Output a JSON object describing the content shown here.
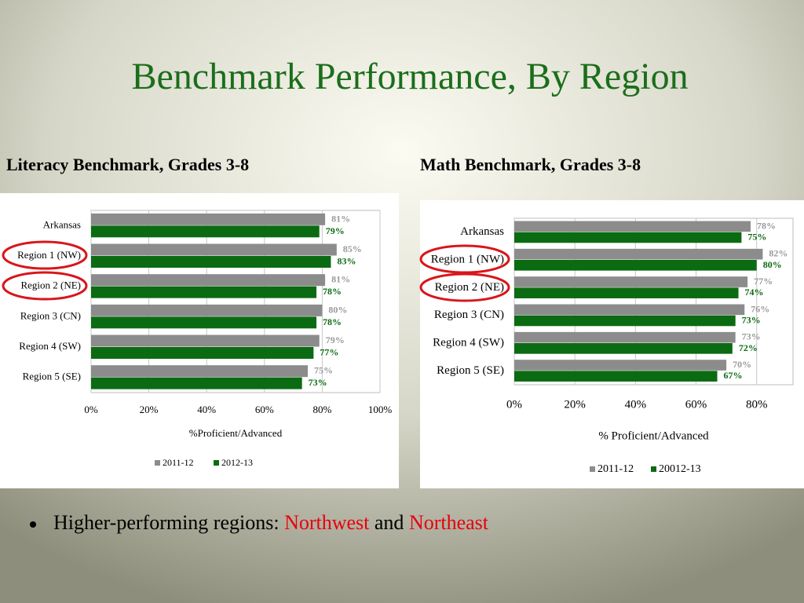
{
  "title": "Benchmark Performance, By Region",
  "chart_data": [
    {
      "type": "bar",
      "orientation": "horizontal",
      "title": "Literacy Benchmark, Grades 3-8",
      "categories": [
        "Arkansas",
        "Region 1 (NW)",
        "Region 2 (NE)",
        "Region 3 (CN)",
        "Region 4 (SW)",
        "Region 5 (SE)"
      ],
      "series": [
        {
          "name": "2011-12",
          "color": "#8c8c8c",
          "values": [
            81,
            85,
            81,
            80,
            79,
            75
          ],
          "value_labels": [
            "81%",
            "85%",
            "81%",
            "80%",
            "79%",
            "75%"
          ]
        },
        {
          "name": "2012-13",
          "color": "#0b6b12",
          "values": [
            79,
            83,
            78,
            78,
            77,
            73
          ],
          "value_labels": [
            "79%",
            "83%",
            "78%",
            "78%",
            "77%",
            "73%"
          ]
        }
      ],
      "xlim": [
        0,
        100
      ],
      "xticks": [
        {
          "value": 0,
          "label": "0%"
        },
        {
          "value": 20,
          "label": "20%"
        },
        {
          "value": 40,
          "label": "40%"
        },
        {
          "value": 60,
          "label": "60%"
        },
        {
          "value": 80,
          "label": "80%"
        },
        {
          "value": 100,
          "label": "100%"
        }
      ],
      "xlabel": "%Proficient/Advanced",
      "grid": true,
      "legend": "bottom"
    },
    {
      "type": "bar",
      "orientation": "horizontal",
      "title": "Math Benchmark, Grades 3-8",
      "categories": [
        "Arkansas",
        "Region 1 (NW)",
        "Region 2 (NE)",
        "Region 3 (CN)",
        "Region 4 (SW)",
        "Region 5 (SE)"
      ],
      "series": [
        {
          "name": "2011-12",
          "color": "#8c8c8c",
          "values": [
            78,
            82,
            77,
            76,
            73,
            70
          ],
          "value_labels": [
            "78%",
            "82%",
            "77%",
            "76%",
            "73%",
            "70%"
          ]
        },
        {
          "name": "20012-13",
          "color": "#0b6b12",
          "values": [
            75,
            80,
            74,
            73,
            72,
            67
          ],
          "value_labels": [
            "75%",
            "80%",
            "74%",
            "73%",
            "72%",
            "67%"
          ]
        }
      ],
      "xlim": [
        0,
        92
      ],
      "xticks": [
        {
          "value": 0,
          "label": "0%"
        },
        {
          "value": 20,
          "label": "20%"
        },
        {
          "value": 40,
          "label": "40%"
        },
        {
          "value": 60,
          "label": "60%"
        },
        {
          "value": 80,
          "label": "80%"
        }
      ],
      "xlabel": "% Proficient/Advanced",
      "grid": true,
      "legend": "bottom"
    }
  ],
  "bullet": [
    "Higher-performing regions: ",
    "Northwest",
    " and ",
    "Northeast"
  ]
}
